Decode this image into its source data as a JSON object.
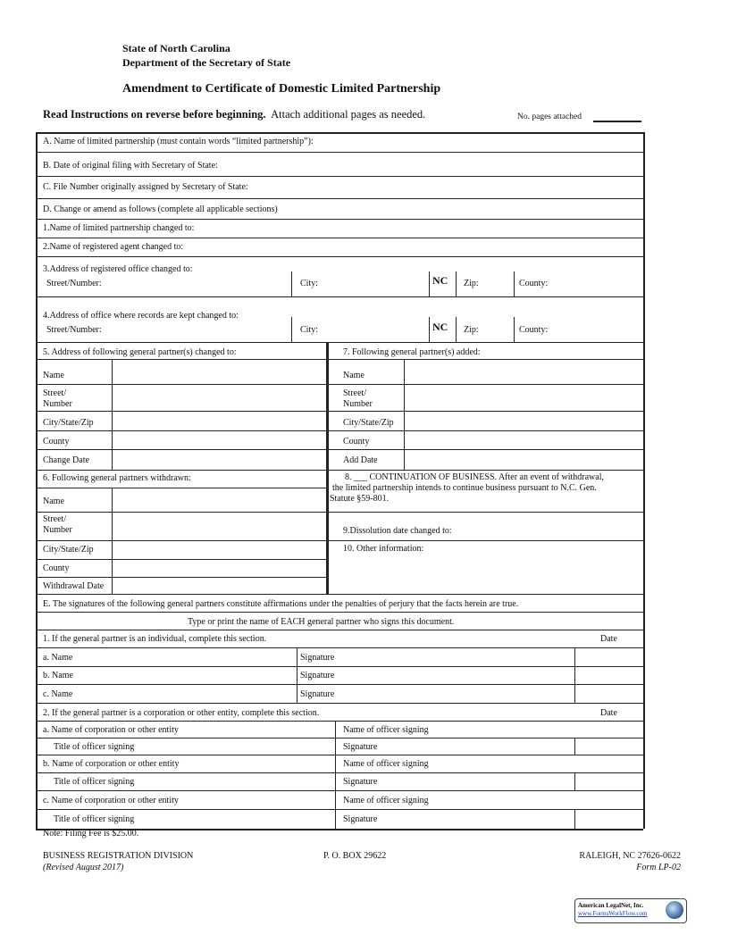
{
  "header": {
    "line1": "State of North Carolina",
    "line2": "Department of the Secretary of State",
    "title": "Amendment to Certificate of Domestic Limited Partnership",
    "instr_bold": "Read Instructions on reverse before beginning.",
    "instr_rest": "Attach additional pages as needed.",
    "pages_label": "No. pages attached"
  },
  "sections": {
    "a": "A.  Name of limited partnership (must contain words “limited partnership”):",
    "b": "B.  Date of original filing with Secretary of State:",
    "c": "C.  File Number originally assigned by Secretary of State:",
    "d": "D.  Change or amend as follows (complete all applicable sections)",
    "s1": "1.Name of limited partnership changed to:",
    "s2": "2.Name of registered agent changed to:",
    "s3": "3.Address of registered office changed to:",
    "s4": "4.Address of office where records are kept changed to:",
    "street": "Street/Number:",
    "city": "City:",
    "state": "NC",
    "zip": "Zip:",
    "county": "County:",
    "s5": "5.  Address of following general partner(s) changed to:",
    "s7": "7. Following general partner(s) added:",
    "s6": "6. Following general partners withdrawn:",
    "name": "Name",
    "street1": "Street/",
    "street2": "Number",
    "csz": "City/State/Zip",
    "county2": "County",
    "change_date": "Change Date",
    "add_date": "Add Date",
    "withdrawal_date": "Withdrawal Date",
    "s8a": "8.  ___ CONTINUATION OF BUSINESS.  After an event of withdrawal,",
    "s8b": "the limited partnership intends to  continue business pursuant to N.C. Gen.",
    "s8c": "Statute §59-801.",
    "s9": "9.Dissolution date changed to:",
    "s10": "10.  Other information:",
    "e": "E.  The signatures of the following general partners constitute affirmations under the penalties of perjury that the facts herein are true.",
    "type": "Type or print the name of EACH general partner who signs this document.",
    "e1": "1.  If the general partner is an individual, complete this section.",
    "date": "Date",
    "a_name": "a.  Name",
    "b_name": "b.  Name",
    "c_name": "c.  Name",
    "signature": "Signature",
    "e2": "2.  If the general partner is a corporation or other entity, complete this section.",
    "a_corp": "a.  Name of corporation or other entity",
    "b_corp": "b.  Name of corporation or other entity",
    "c_corp": "c.  Name of corporation or other entity",
    "officer_name": "Name of officer signing",
    "officer_title": "Title of officer signing"
  },
  "footer": {
    "note": "Note: Filing Fee is $25.00.",
    "division": "BUSINESS REGISTRATION DIVISION",
    "revised": "(Revised August 2017)",
    "pobox": "P. O. BOX 29622",
    "city": "RALEIGH, NC 27626-0622",
    "form": "Form LP-02"
  },
  "logo": {
    "name": "American LegalNet, Inc.",
    "url": "www.FormsWorkFlow.com"
  }
}
